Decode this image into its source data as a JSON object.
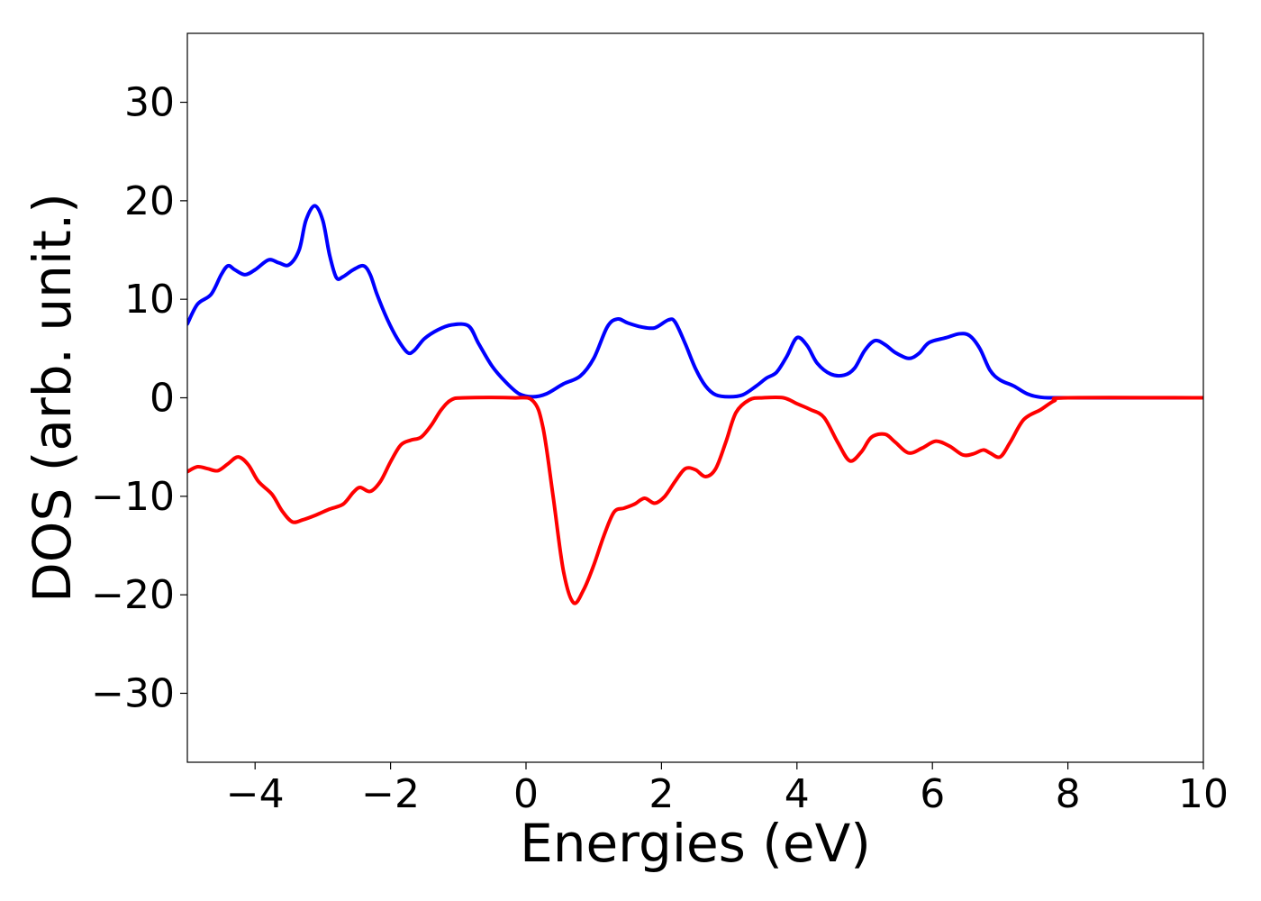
{
  "chart_data": {
    "type": "line",
    "title": "",
    "xlabel": "Energies (eV)",
    "ylabel": "DOS (arb. unit.)",
    "xlim": [
      -5,
      10
    ],
    "ylim": [
      -37,
      37
    ],
    "xticks": [
      -4,
      -2,
      0,
      2,
      4,
      6,
      8,
      10
    ],
    "yticks": [
      -30,
      -20,
      -10,
      0,
      10,
      20,
      30
    ],
    "xtick_labels": [
      "−4",
      "−2",
      "0",
      "2",
      "4",
      "6",
      "8",
      "10"
    ],
    "ytick_labels": [
      "−30",
      "−20",
      "−10",
      "0",
      "10",
      "20",
      "30"
    ],
    "grid": false,
    "legend": "none",
    "series": [
      {
        "color": "#0000ff",
        "points": [
          [
            -5.0,
            7.5
          ],
          [
            -4.85,
            9.5
          ],
          [
            -4.65,
            10.5
          ],
          [
            -4.5,
            12.5
          ],
          [
            -4.4,
            13.4
          ],
          [
            -4.3,
            13.0
          ],
          [
            -4.15,
            12.5
          ],
          [
            -4.0,
            13.0
          ],
          [
            -3.8,
            14.0
          ],
          [
            -3.65,
            13.7
          ],
          [
            -3.5,
            13.5
          ],
          [
            -3.35,
            15.0
          ],
          [
            -3.25,
            18.0
          ],
          [
            -3.12,
            19.5
          ],
          [
            -3.0,
            18.0
          ],
          [
            -2.9,
            14.5
          ],
          [
            -2.8,
            12.2
          ],
          [
            -2.7,
            12.3
          ],
          [
            -2.55,
            13.0
          ],
          [
            -2.4,
            13.4
          ],
          [
            -2.3,
            12.5
          ],
          [
            -2.2,
            10.5
          ],
          [
            -2.05,
            8.0
          ],
          [
            -1.9,
            6.0
          ],
          [
            -1.75,
            4.6
          ],
          [
            -1.65,
            4.8
          ],
          [
            -1.5,
            6.0
          ],
          [
            -1.3,
            6.9
          ],
          [
            -1.1,
            7.4
          ],
          [
            -0.85,
            7.3
          ],
          [
            -0.7,
            5.5
          ],
          [
            -0.5,
            3.2
          ],
          [
            -0.3,
            1.6
          ],
          [
            -0.1,
            0.4
          ],
          [
            0.1,
            0.1
          ],
          [
            0.3,
            0.4
          ],
          [
            0.55,
            1.4
          ],
          [
            0.8,
            2.2
          ],
          [
            1.0,
            4.0
          ],
          [
            1.2,
            7.2
          ],
          [
            1.35,
            8.0
          ],
          [
            1.5,
            7.6
          ],
          [
            1.7,
            7.2
          ],
          [
            1.9,
            7.1
          ],
          [
            2.1,
            7.9
          ],
          [
            2.2,
            7.7
          ],
          [
            2.35,
            5.5
          ],
          [
            2.5,
            3.0
          ],
          [
            2.65,
            1.2
          ],
          [
            2.8,
            0.3
          ],
          [
            3.0,
            0.1
          ],
          [
            3.2,
            0.3
          ],
          [
            3.4,
            1.2
          ],
          [
            3.55,
            2.0
          ],
          [
            3.7,
            2.6
          ],
          [
            3.85,
            4.2
          ],
          [
            4.0,
            6.1
          ],
          [
            4.15,
            5.3
          ],
          [
            4.3,
            3.5
          ],
          [
            4.5,
            2.4
          ],
          [
            4.7,
            2.3
          ],
          [
            4.85,
            3.0
          ],
          [
            5.0,
            4.8
          ],
          [
            5.15,
            5.8
          ],
          [
            5.3,
            5.4
          ],
          [
            5.45,
            4.6
          ],
          [
            5.65,
            4.0
          ],
          [
            5.8,
            4.5
          ],
          [
            5.95,
            5.6
          ],
          [
            6.2,
            6.1
          ],
          [
            6.4,
            6.5
          ],
          [
            6.55,
            6.3
          ],
          [
            6.7,
            5.0
          ],
          [
            6.85,
            2.8
          ],
          [
            7.0,
            1.8
          ],
          [
            7.2,
            1.2
          ],
          [
            7.4,
            0.4
          ],
          [
            7.6,
            0.05
          ],
          [
            7.8,
            0.0
          ],
          [
            8.5,
            0.0
          ],
          [
            10.0,
            0.0
          ]
        ]
      },
      {
        "color": "#ff0000",
        "points": [
          [
            -5.0,
            -7.5
          ],
          [
            -4.85,
            -7.0
          ],
          [
            -4.7,
            -7.2
          ],
          [
            -4.55,
            -7.4
          ],
          [
            -4.4,
            -6.7
          ],
          [
            -4.25,
            -6.0
          ],
          [
            -4.1,
            -6.8
          ],
          [
            -3.95,
            -8.5
          ],
          [
            -3.75,
            -9.8
          ],
          [
            -3.6,
            -11.5
          ],
          [
            -3.45,
            -12.6
          ],
          [
            -3.3,
            -12.4
          ],
          [
            -3.1,
            -11.9
          ],
          [
            -2.9,
            -11.3
          ],
          [
            -2.7,
            -10.8
          ],
          [
            -2.55,
            -9.6
          ],
          [
            -2.45,
            -9.1
          ],
          [
            -2.3,
            -9.5
          ],
          [
            -2.15,
            -8.5
          ],
          [
            -2.0,
            -6.5
          ],
          [
            -1.85,
            -4.8
          ],
          [
            -1.7,
            -4.3
          ],
          [
            -1.55,
            -4.0
          ],
          [
            -1.4,
            -2.8
          ],
          [
            -1.25,
            -1.2
          ],
          [
            -1.1,
            -0.2
          ],
          [
            -0.9,
            0.0
          ],
          [
            -0.2,
            0.0
          ],
          [
            0.1,
            -0.3
          ],
          [
            0.25,
            -3.0
          ],
          [
            0.4,
            -10.0
          ],
          [
            0.55,
            -17.5
          ],
          [
            0.7,
            -20.8
          ],
          [
            0.85,
            -19.5
          ],
          [
            1.0,
            -17.0
          ],
          [
            1.15,
            -14.0
          ],
          [
            1.3,
            -11.6
          ],
          [
            1.45,
            -11.2
          ],
          [
            1.6,
            -10.8
          ],
          [
            1.75,
            -10.2
          ],
          [
            1.9,
            -10.7
          ],
          [
            2.05,
            -10.0
          ],
          [
            2.2,
            -8.5
          ],
          [
            2.35,
            -7.2
          ],
          [
            2.5,
            -7.3
          ],
          [
            2.65,
            -8.0
          ],
          [
            2.8,
            -7.2
          ],
          [
            2.95,
            -4.5
          ],
          [
            3.1,
            -1.5
          ],
          [
            3.3,
            -0.2
          ],
          [
            3.5,
            0.0
          ],
          [
            3.8,
            0.0
          ],
          [
            4.0,
            -0.6
          ],
          [
            4.2,
            -1.2
          ],
          [
            4.4,
            -2.0
          ],
          [
            4.6,
            -4.5
          ],
          [
            4.78,
            -6.4
          ],
          [
            4.95,
            -5.5
          ],
          [
            5.1,
            -4.0
          ],
          [
            5.3,
            -3.7
          ],
          [
            5.45,
            -4.5
          ],
          [
            5.65,
            -5.6
          ],
          [
            5.85,
            -5.1
          ],
          [
            6.05,
            -4.4
          ],
          [
            6.25,
            -4.9
          ],
          [
            6.45,
            -5.8
          ],
          [
            6.6,
            -5.7
          ],
          [
            6.75,
            -5.3
          ],
          [
            6.85,
            -5.6
          ],
          [
            7.0,
            -6.0
          ],
          [
            7.15,
            -4.5
          ],
          [
            7.35,
            -2.2
          ],
          [
            7.6,
            -1.2
          ],
          [
            7.8,
            -0.3
          ],
          [
            8.0,
            0.0
          ],
          [
            10.0,
            0.0
          ]
        ]
      }
    ]
  }
}
